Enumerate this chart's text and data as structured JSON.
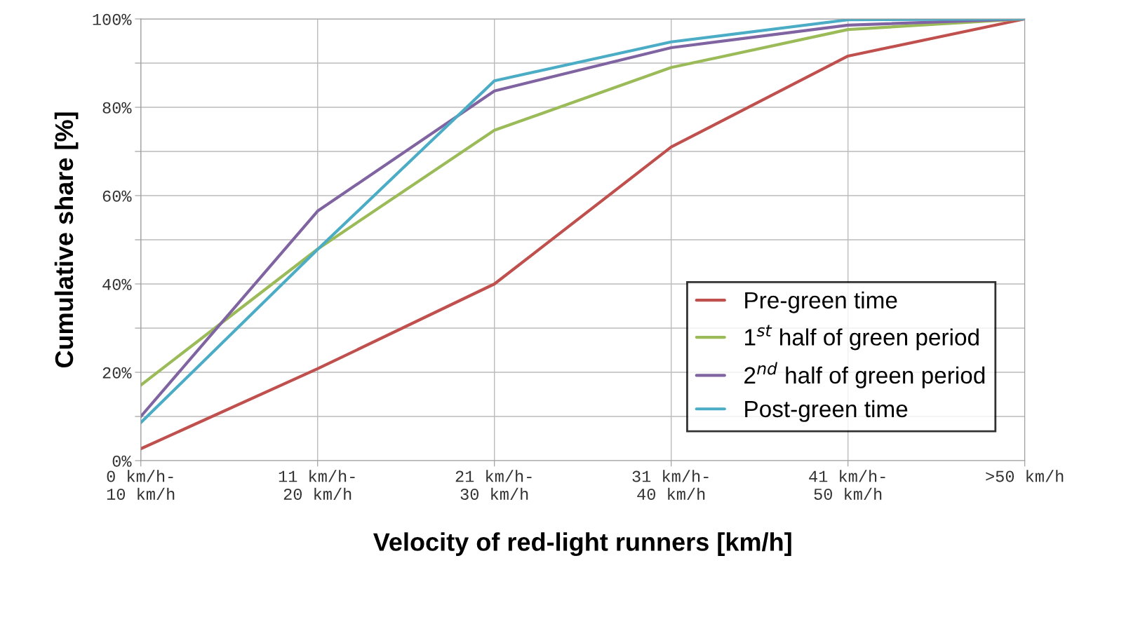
{
  "chart_data": {
    "type": "line",
    "xlabel": "Velocity of red-light runners [km/h]",
    "ylabel": "Cumulative share [%]",
    "categories": [
      "0 km/h-\n10 km/h",
      "11 km/h-\n20 km/h",
      "21 km/h-\n30 km/h",
      "31 km/h-\n40 km/h",
      "41 km/h-\n50 km/h",
      ">50 km/h"
    ],
    "series": [
      {
        "name": "Pre-green time",
        "color": "#c0504d",
        "values": [
          2.7,
          20.8,
          40,
          71,
          91.6,
          100
        ]
      },
      {
        "name": "1$^{st}$ half of green period",
        "color": "#9bbb59",
        "values": [
          17.1,
          47.9,
          74.8,
          89,
          97.6,
          100
        ]
      },
      {
        "name": "2$^{nd}$ half of green period",
        "color": "#8064a2",
        "values": [
          10,
          56.5,
          83.7,
          93.5,
          98.6,
          100
        ]
      },
      {
        "name": "Post-green time",
        "color": "#4bacc6",
        "values": [
          8.6,
          47.8,
          86,
          94.8,
          99.8,
          100
        ]
      }
    ],
    "ylim": [
      0,
      100
    ],
    "yticks": [
      {
        "value": 0,
        "label": "0%"
      },
      {
        "value": 10,
        "label": null
      },
      {
        "value": 20,
        "label": "20%"
      },
      {
        "value": 30,
        "label": null
      },
      {
        "value": 40,
        "label": "40%"
      },
      {
        "value": 50,
        "label": null
      },
      {
        "value": 60,
        "label": "60%"
      },
      {
        "value": 70,
        "label": null
      },
      {
        "value": 80,
        "label": "80%"
      },
      {
        "value": 90,
        "label": null
      },
      {
        "value": 100,
        "label": "100%"
      }
    ],
    "grid": true,
    "legend": "bottom right",
    "marker": "none",
    "line_style": "solid"
  }
}
